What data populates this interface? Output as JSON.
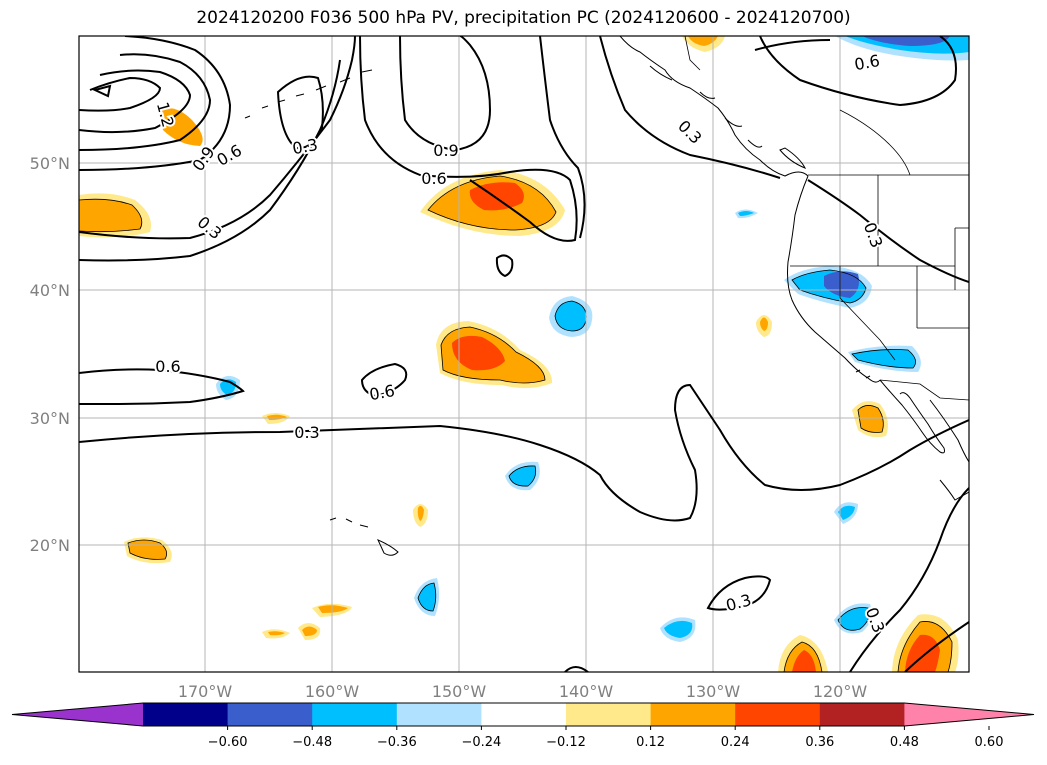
{
  "title": "2024120200 F036 500 hPa PV, precipitation PC (2024120600 - 2024120700)",
  "lat_labels": [
    "50°N",
    "40°N",
    "30°N",
    "20°N"
  ],
  "lon_labels": [
    "170°W",
    "160°W",
    "150°W",
    "140°W",
    "130°W",
    "120°W"
  ],
  "contour_labels": [
    {
      "text": "0.6"
    },
    {
      "text": "0.3"
    },
    {
      "text": "0.9"
    },
    {
      "text": "0.6"
    },
    {
      "text": "0.3"
    },
    {
      "text": "0.6"
    },
    {
      "text": "0.3"
    },
    {
      "text": "0.6"
    },
    {
      "text": "0.6"
    },
    {
      "text": "0.3"
    },
    {
      "text": "0.3"
    },
    {
      "text": "0.3"
    },
    {
      "text": "0.3"
    },
    {
      "text": "1.2"
    },
    {
      "text": "0.9"
    }
  ],
  "colorbar": {
    "ticks": [
      "−0.60",
      "−0.48",
      "−0.36",
      "−0.24",
      "−0.12",
      "0.12",
      "0.24",
      "0.36",
      "0.48",
      "0.60"
    ],
    "colors": [
      "#9a32cd",
      "#00008b",
      "#3a5fcd",
      "#00bfff",
      "#b0e2ff",
      "#ffffff",
      "#ffe98a",
      "#ffa500",
      "#ff4500",
      "#b22222",
      "#ff82ab"
    ]
  }
}
